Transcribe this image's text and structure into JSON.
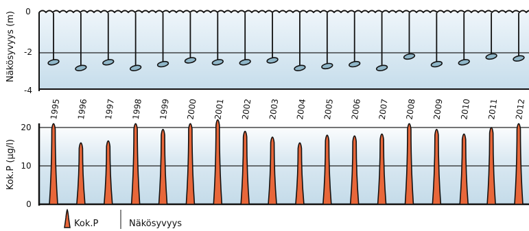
{
  "chart_data": [
    {
      "type": "line",
      "ylabel": "Näkösyvyys (m)",
      "ylim": [
        -4,
        0
      ],
      "yticks": [
        "0",
        "-2",
        "-4"
      ],
      "x": [
        "1995",
        "1996",
        "1997",
        "1998",
        "1999",
        "2000",
        "2001",
        "2002",
        "2003",
        "2004",
        "2005",
        "2006",
        "2007",
        "2008",
        "2009",
        "2010",
        "2011",
        "2012"
      ],
      "series": [
        {
          "name": "Näkösyvyys",
          "values": [
            -2.6,
            -2.9,
            -2.6,
            -2.9,
            -2.7,
            -2.5,
            -2.6,
            -2.6,
            -2.5,
            -2.9,
            -2.8,
            -2.7,
            -2.9,
            -2.3,
            -2.7,
            -2.6,
            -2.3,
            -2.4
          ]
        }
      ],
      "grid": "horizontal lines at 0 and -2",
      "colors": {
        "water": "#cde2ef",
        "marker": "#8fb6c8",
        "line": "#111111"
      }
    },
    {
      "type": "bar",
      "ylabel": "Kok.P (µg/l)",
      "ylim": [
        0,
        20
      ],
      "yticks": [
        "20",
        "10",
        "0"
      ],
      "categories": [
        "1995",
        "1996",
        "1997",
        "1998",
        "1999",
        "2000",
        "2001",
        "2002",
        "2003",
        "2004",
        "2005",
        "2006",
        "2007",
        "2008",
        "2009",
        "2010",
        "2011",
        "2012"
      ],
      "series": [
        {
          "name": "Kok.P",
          "values": [
            21,
            16,
            16.5,
            21,
            19.5,
            21,
            22,
            19,
            17.5,
            16,
            18,
            17.8,
            18.3,
            21,
            19.5,
            18.3,
            20,
            21
          ]
        }
      ],
      "grid": "horizontal lines at 10 and 20",
      "colors": {
        "spike": "#e8673a",
        "background": "#cde2ef"
      }
    }
  ],
  "legend": {
    "items": [
      {
        "label": "Kok.P",
        "color": "#e8673a"
      },
      {
        "label": "Näkösyvyys",
        "color": "#111111"
      }
    ],
    "placement": "bottom-left"
  }
}
